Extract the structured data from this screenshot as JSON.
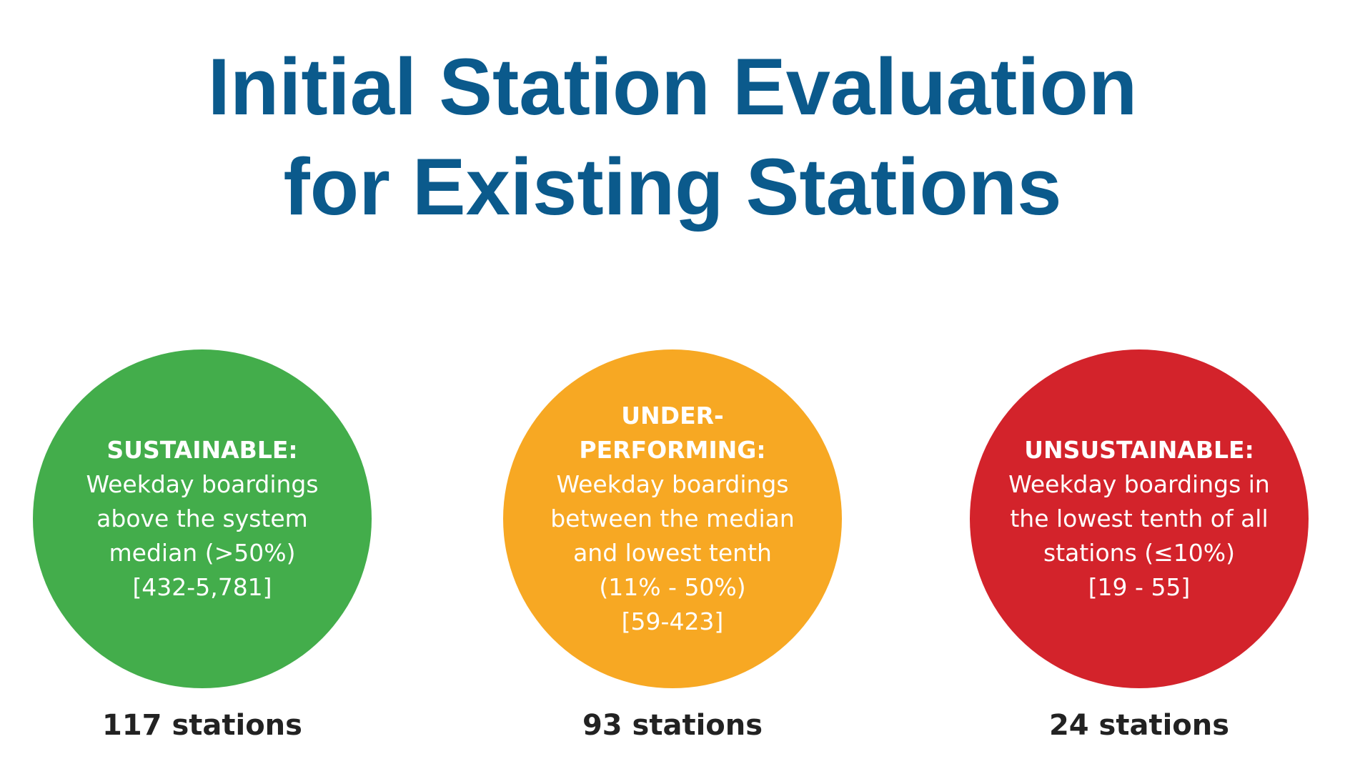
{
  "title_lines": [
    "Initial Station Evaluation",
    "for Existing Stations"
  ],
  "categories": [
    {
      "color": "#43ad4b",
      "heading": [
        "SUSTAINABLE:"
      ],
      "description": [
        "Weekday boardings",
        "above the system",
        "median (>50%)"
      ],
      "range": "[432-5,781]",
      "count": "117 stations"
    },
    {
      "color": "#f7a823",
      "heading": [
        "UNDER-",
        "PERFORMING:"
      ],
      "description": [
        "Weekday boardings",
        "between the median",
        "and lowest tenth",
        "(11% - 50%)"
      ],
      "range": "[59-423]",
      "count": "93 stations"
    },
    {
      "color": "#d3232b",
      "heading": [
        "UNSUSTAINABLE:"
      ],
      "description": [
        "Weekday boardings in",
        "the lowest tenth of all",
        "stations (≤10%)"
      ],
      "range": "[19 - 55]",
      "count": "24 stations"
    }
  ]
}
